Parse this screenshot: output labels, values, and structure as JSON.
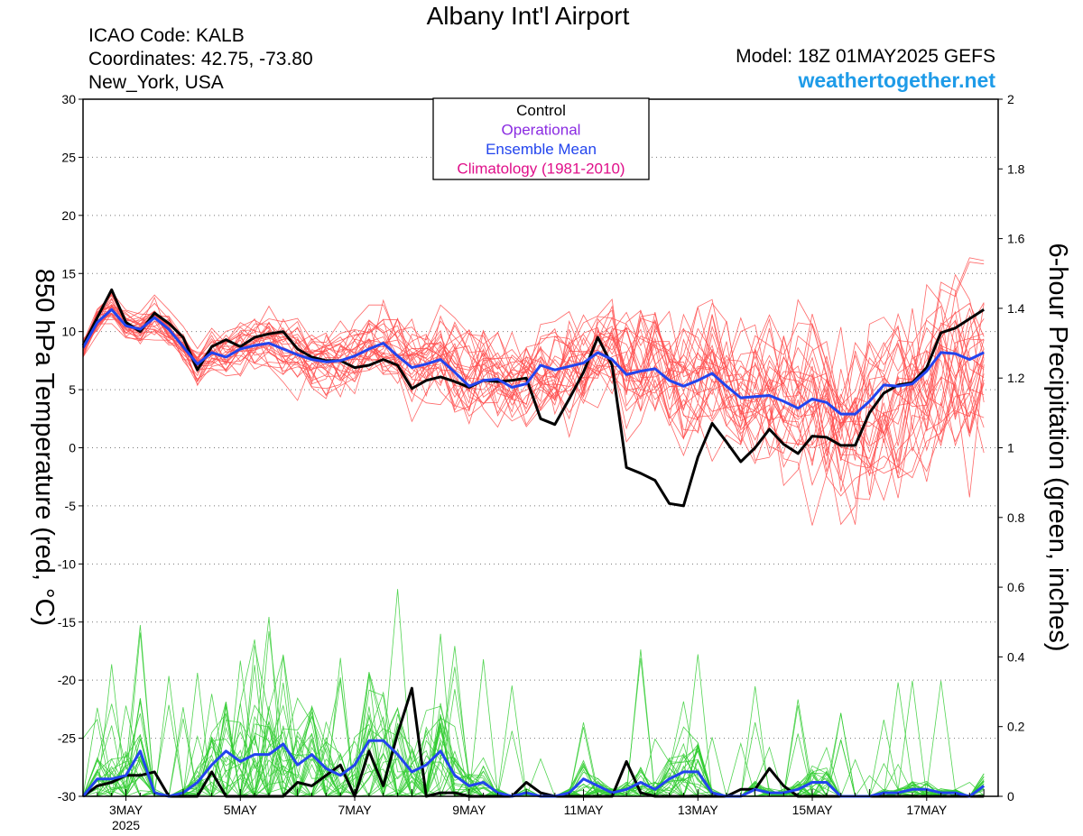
{
  "header": {
    "title": "Albany Int'l Airport",
    "icao": "ICAO Code: KALB",
    "coordinates": "Coordinates: 42.75, -73.80",
    "location": "New_York, USA",
    "model": "Model: 18Z 01MAY2025 GEFS",
    "website": "weathertogether.net"
  },
  "chart_data": {
    "type": "line",
    "x_units": "days since 01MAY2025 18Z (6-hour steps)",
    "xlim": [
      0.25,
      16.25
    ],
    "x_tick_labels": [
      {
        "x": 1.0,
        "label": "3MAY"
      },
      {
        "x": 3.0,
        "label": "5MAY"
      },
      {
        "x": 5.0,
        "label": "7MAY"
      },
      {
        "x": 7.0,
        "label": "9MAY"
      },
      {
        "x": 9.0,
        "label": "11MAY"
      },
      {
        "x": 11.0,
        "label": "13MAY"
      },
      {
        "x": 13.0,
        "label": "15MAY"
      },
      {
        "x": 15.0,
        "label": "17MAY"
      }
    ],
    "year_label": "2025",
    "left_axis": {
      "label": "850 hPa Temperature (red, °C)",
      "ylim": [
        -30,
        30
      ],
      "ticks": [
        -30,
        -25,
        -20,
        -15,
        -10,
        -5,
        0,
        5,
        10,
        15,
        20,
        25,
        30
      ]
    },
    "right_axis": {
      "label": "6-hour Precipitation (green, inches)",
      "ylim": [
        0,
        2
      ],
      "ticks": [
        "0",
        "0.2",
        "0.4",
        "0.6",
        "0.8",
        "1",
        "1.2",
        "1.4",
        "1.6",
        "1.8",
        "2"
      ]
    },
    "grid": true,
    "legend": {
      "position": "top-center",
      "entries": [
        {
          "label": "Control",
          "color": "#000000"
        },
        {
          "label": "Operational",
          "color": "#8a2be2"
        },
        {
          "label": "Ensemble Mean",
          "color": "#2244ee"
        },
        {
          "label": "Climatology (1981-2010)",
          "color": "#e0108a"
        }
      ]
    },
    "colors": {
      "temperature_members": "#ff4d4d",
      "precip_members": "#33cc33",
      "control": "#000000",
      "ensemble_mean": "#2244ee"
    },
    "series": [
      {
        "name": "Control",
        "axis": "left",
        "values": [
          8.8,
          11.2,
          13.6,
          10.8,
          10.0,
          11.6,
          10.7,
          9.5,
          6.7,
          8.7,
          9.3,
          8.7,
          9.5,
          9.8,
          10.0,
          8.5,
          7.8,
          7.5,
          7.5,
          6.9,
          7.1,
          7.6,
          7.1,
          5.1,
          5.8,
          6.1,
          5.7,
          5.2,
          5.8,
          5.7,
          5.8,
          6.0,
          2.5,
          2.0,
          4.2,
          6.5,
          9.5,
          7.1,
          -1.7,
          -2.2,
          -2.8,
          -4.8,
          -5.0,
          -0.8,
          2.1,
          0.5,
          -1.2,
          -0.0,
          1.6,
          0.3,
          -0.5,
          1.0,
          0.9,
          0.2,
          0.2,
          3.0,
          4.7,
          5.4,
          5.6,
          6.9,
          9.9,
          10.3,
          11.1,
          11.9
        ]
      },
      {
        "name": "Ensemble Mean",
        "axis": "left",
        "values": [
          8.6,
          10.8,
          11.9,
          10.5,
          10.2,
          11.2,
          10.2,
          8.7,
          7.2,
          8.2,
          7.8,
          8.5,
          8.8,
          9.0,
          8.5,
          8.0,
          7.6,
          7.4,
          7.5,
          7.9,
          8.5,
          9.0,
          7.9,
          6.9,
          7.2,
          7.6,
          6.5,
          5.3,
          5.8,
          5.9,
          5.2,
          5.5,
          7.1,
          6.7,
          7.0,
          7.3,
          8.2,
          7.6,
          6.3,
          6.6,
          6.8,
          5.8,
          5.3,
          5.8,
          6.4,
          5.3,
          4.3,
          4.4,
          4.5,
          4.0,
          3.4,
          4.2,
          3.9,
          2.9,
          2.9,
          4.0,
          5.4,
          5.3,
          5.5,
          6.6,
          8.2,
          8.1,
          7.6,
          8.2
        ]
      },
      {
        "name": "Control",
        "axis": "right",
        "values": [
          0,
          0.03,
          0.04,
          0.06,
          0.06,
          0.07,
          0.0,
          0.0,
          0.0,
          0.07,
          0.0,
          0.0,
          0.0,
          0.0,
          0.0,
          0.04,
          0.03,
          0.06,
          0.09,
          0.0,
          0.13,
          0.03,
          0.18,
          0.31,
          0.0,
          0.01,
          0.01,
          0.0,
          0.0,
          0.0,
          0.0,
          0.04,
          0.01,
          0.0,
          0.0,
          0.0,
          0.0,
          0.0,
          0.1,
          0.01,
          0.0,
          0.0,
          0.0,
          0.0,
          0.0,
          0.0,
          0.02,
          0.02,
          0.08,
          0.03,
          0.0,
          0.0,
          0.0,
          0.0,
          0.0,
          0.0,
          0.0,
          0.0,
          0.0,
          0.0,
          0.0,
          0.0,
          0.0,
          0.0
        ]
      },
      {
        "name": "Ensemble Mean",
        "axis": "right",
        "values": [
          0,
          0.05,
          0.05,
          0.06,
          0.13,
          0.01,
          0.0,
          0.01,
          0.04,
          0.09,
          0.13,
          0.1,
          0.12,
          0.12,
          0.15,
          0.09,
          0.12,
          0.08,
          0.06,
          0.09,
          0.16,
          0.16,
          0.12,
          0.07,
          0.09,
          0.13,
          0.06,
          0.03,
          0.04,
          0.01,
          0.0,
          0.01,
          0.0,
          0.0,
          0.01,
          0.05,
          0.03,
          0.01,
          0.02,
          0.04,
          0.02,
          0.05,
          0.07,
          0.07,
          0.01,
          0.0,
          0.0,
          0.02,
          0.01,
          0.01,
          0.02,
          0.04,
          0.04,
          0.0,
          0.0,
          0.0,
          0.01,
          0.01,
          0.02,
          0.02,
          0.01,
          0.01,
          0.0,
          0.03
        ]
      }
    ]
  }
}
